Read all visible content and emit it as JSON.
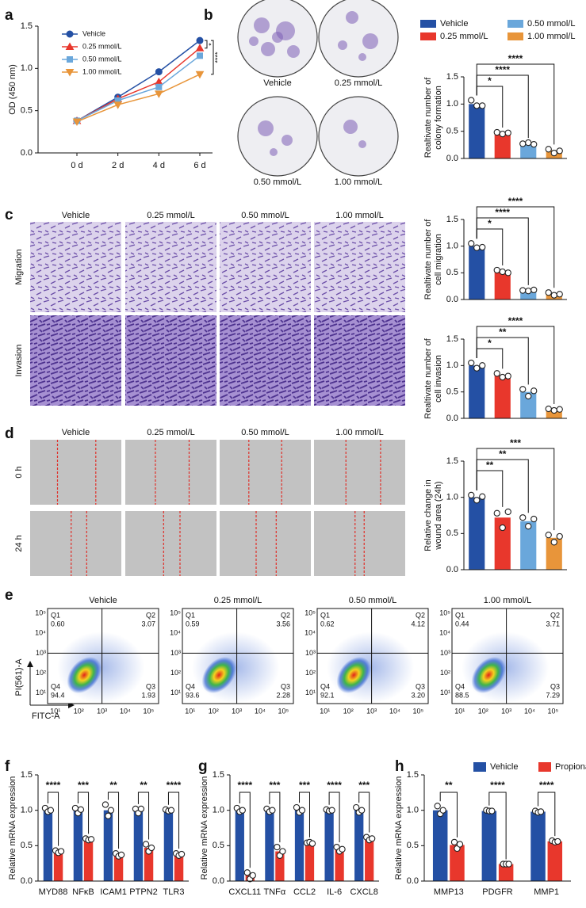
{
  "panel_letters": [
    "a",
    "b",
    "c",
    "d",
    "e",
    "f",
    "g",
    "h"
  ],
  "colony_labels": [
    "Vehicle",
    "0.25 mmol/L",
    "0.50 mmol/L",
    "1.00 mmol/L"
  ],
  "transwell": {
    "columns": [
      "Vehicle",
      "0.25 mmol/L",
      "0.50 mmol/L",
      "1.00 mmol/L"
    ],
    "rows": [
      "Migration",
      "Invasion"
    ]
  },
  "wound": {
    "columns": [
      "Vehicle",
      "0.25 mmol/L",
      "0.50 mmol/L",
      "1.00 mmol/L"
    ],
    "rows": [
      "0 h",
      "24 h"
    ]
  },
  "flow": {
    "xlabel": "FITC-A",
    "ylabel": "PI(561)-A",
    "xticks": [
      "10¹",
      "10²",
      "10³",
      "10⁴",
      "10⁵"
    ],
    "yticks": [
      "10⁵",
      "10⁴",
      "10³",
      "10²",
      "10¹"
    ],
    "quadrant_names": [
      "Q1",
      "Q2",
      "Q3",
      "Q4"
    ],
    "plots": [
      {
        "title": "Vehicle",
        "q1": "0.60",
        "q2": "3.07",
        "q3": "1.93",
        "q4": "94.4"
      },
      {
        "title": "0.25 mmol/L",
        "q1": "0.59",
        "q2": "3.56",
        "q3": "2.28",
        "q4": "93.6"
      },
      {
        "title": "0.50 mmol/L",
        "q1": "0.62",
        "q2": "4.12",
        "q3": "3.20",
        "q4": "92.1"
      },
      {
        "title": "1.00 mmol/L",
        "q1": "0.44",
        "q2": "3.71",
        "q3": "7.29",
        "q4": "88.5"
      }
    ]
  },
  "chart_data": [
    {
      "type": "line",
      "ylabel": "OD (450 nm)",
      "categories": [
        "0 d",
        "2 d",
        "4 d",
        "6 d"
      ],
      "ylim": [
        0,
        1.5
      ],
      "yticks": [
        {
          "value": 0,
          "label": "0.0"
        },
        0.5,
        {
          "value": 1,
          "label": "1.0"
        },
        1.5
      ],
      "series": [
        {
          "name": "Vehicle",
          "color": "#2450a4",
          "marker": "circle",
          "values": [
            0.38,
            0.66,
            0.96,
            1.33
          ]
        },
        {
          "name": "0.25 mmol/L",
          "color": "#e8372c",
          "marker": "triangle",
          "values": [
            0.38,
            0.64,
            0.84,
            1.24
          ]
        },
        {
          "name": "0.50 mmol/L",
          "color": "#6aa7db",
          "marker": "square",
          "values": [
            0.38,
            0.62,
            0.78,
            1.15
          ]
        },
        {
          "name": "1.00 mmol/L",
          "color": "#e8953a",
          "marker": "triangle-down",
          "values": [
            0.37,
            0.57,
            0.7,
            0.93
          ]
        }
      ],
      "annotations": [
        "*",
        "****"
      ]
    },
    {
      "type": "bar",
      "ylabel": [
        "Realtivate number of",
        "colony formation"
      ],
      "legend": [
        "Vehicle",
        "0.25 mmol/L",
        "0.50 mmol/L",
        "1.00 mmol/L"
      ],
      "colors": [
        "#2450a4",
        "#e8372c",
        "#6aa7db",
        "#e8953a"
      ],
      "values": [
        1.0,
        0.47,
        0.28,
        0.15
      ],
      "points": [
        [
          1.07,
          0.97,
          0.97
        ],
        [
          0.48,
          0.45,
          0.47
        ],
        [
          0.27,
          0.29,
          0.26
        ],
        [
          0.17,
          0.1,
          0.14
        ]
      ],
      "significance": [
        "*",
        "****",
        "****"
      ],
      "ylim": [
        0,
        1.5
      ],
      "yticks": [
        {
          "value": 0,
          "label": "0.0"
        },
        0.5,
        {
          "value": 1,
          "label": "1.0"
        },
        1.5
      ]
    },
    {
      "type": "bar",
      "ylabel": [
        "Realtivate number of",
        "cell migration"
      ],
      "colors": [
        "#2450a4",
        "#e8372c",
        "#6aa7db",
        "#e8953a"
      ],
      "values": [
        1.0,
        0.53,
        0.17,
        0.1
      ],
      "points": [
        [
          1.05,
          0.97,
          0.98
        ],
        [
          0.55,
          0.52,
          0.5
        ],
        [
          0.17,
          0.16,
          0.18
        ],
        [
          0.13,
          0.08,
          0.1
        ]
      ],
      "significance": [
        "*",
        "****",
        "****"
      ],
      "ylim": [
        0,
        1.5
      ],
      "yticks": [
        {
          "value": 0,
          "label": "0.0"
        },
        0.5,
        {
          "value": 1,
          "label": "1.0"
        },
        1.5
      ]
    },
    {
      "type": "bar",
      "ylabel": [
        "Realtivate number of",
        "cell invasion"
      ],
      "colors": [
        "#2450a4",
        "#e8372c",
        "#6aa7db",
        "#e8953a"
      ],
      "values": [
        1.0,
        0.81,
        0.5,
        0.17
      ],
      "points": [
        [
          1.05,
          0.95,
          1.0
        ],
        [
          0.85,
          0.78,
          0.8
        ],
        [
          0.55,
          0.42,
          0.52
        ],
        [
          0.18,
          0.15,
          0.17
        ]
      ],
      "significance": [
        "*",
        "**",
        "****"
      ],
      "ylim": [
        0,
        1.5
      ],
      "yticks": [
        {
          "value": 0,
          "label": "0.0"
        },
        0.5,
        {
          "value": 1,
          "label": "1.0"
        },
        1.5
      ]
    },
    {
      "type": "bar",
      "ylabel": [
        "Relative change in",
        "wound area (24h)"
      ],
      "colors": [
        "#2450a4",
        "#e8372c",
        "#6aa7db",
        "#e8953a"
      ],
      "values": [
        1.0,
        0.72,
        0.67,
        0.44
      ],
      "points": [
        [
          1.03,
          0.96,
          1.01
        ],
        [
          0.78,
          0.58,
          0.8
        ],
        [
          0.72,
          0.6,
          0.7
        ],
        [
          0.48,
          0.38,
          0.46
        ]
      ],
      "significance": [
        "**",
        "**",
        "***"
      ],
      "ylim": [
        0,
        1.5
      ],
      "yticks": [
        {
          "value": 0,
          "label": "0.0"
        },
        0.5,
        {
          "value": 1,
          "label": "1.0"
        },
        1.5
      ]
    },
    {
      "type": "bar",
      "ylabel": "Relative mRNA expression",
      "categories": [
        "MYD88",
        "NFκB",
        "ICAM1",
        "PTPN2",
        "TLR3"
      ],
      "series": [
        {
          "color": "#2450a4",
          "values": [
            1.0,
            1.0,
            1.0,
            1.0,
            1.0
          ],
          "points": [
            [
              1.03,
              0.98,
              1.0
            ],
            [
              1.03,
              0.96,
              1.01
            ],
            [
              1.08,
              0.92,
              1.0
            ],
            [
              1.02,
              0.96,
              1.02
            ],
            [
              1.01,
              0.99,
              1.0
            ]
          ]
        },
        {
          "color": "#e8372c",
          "values": [
            0.42,
            0.59,
            0.37,
            0.47,
            0.38
          ],
          "points": [
            [
              0.43,
              0.4,
              0.42
            ],
            [
              0.6,
              0.58,
              0.59
            ],
            [
              0.39,
              0.35,
              0.37
            ],
            [
              0.52,
              0.42,
              0.47
            ],
            [
              0.39,
              0.36,
              0.38
            ]
          ]
        }
      ],
      "significance": [
        "****",
        "***",
        "**",
        "**",
        "****"
      ],
      "ylim": [
        0,
        1.5
      ],
      "yticks": [
        {
          "value": 0,
          "label": "0.0"
        },
        0.5,
        {
          "value": 1,
          "label": "1.0"
        },
        1.5
      ]
    },
    {
      "type": "bar",
      "ylabel": "Relative mRNA expression",
      "categories": [
        "CXCL11",
        "TNFα",
        "CCL2",
        "IL-6",
        "CXCL8"
      ],
      "series": [
        {
          "color": "#2450a4",
          "values": [
            1.0,
            1.0,
            1.0,
            1.0,
            1.0
          ],
          "points": [
            [
              1.03,
              0.98,
              1.0
            ],
            [
              1.02,
              0.98,
              1.0
            ],
            [
              1.04,
              0.97,
              1.0
            ],
            [
              1.01,
              0.99,
              1.0
            ],
            [
              1.04,
              0.97,
              1.0
            ]
          ]
        },
        {
          "color": "#e8372c",
          "values": [
            0.08,
            0.42,
            0.54,
            0.45,
            0.6
          ],
          "points": [
            [
              0.12,
              0.03,
              0.08
            ],
            [
              0.48,
              0.36,
              0.42
            ],
            [
              0.54,
              0.55,
              0.53
            ],
            [
              0.48,
              0.42,
              0.45
            ],
            [
              0.62,
              0.58,
              0.6
            ]
          ]
        }
      ],
      "significance": [
        "****",
        "***",
        "***",
        "****",
        "***"
      ],
      "ylim": [
        0,
        1.5
      ],
      "yticks": [
        {
          "value": 0,
          "label": "0.0"
        },
        0.5,
        {
          "value": 1,
          "label": "1.0"
        },
        1.5
      ]
    },
    {
      "type": "bar",
      "ylabel": "Relative mRNA expression",
      "categories": [
        "MMP13",
        "PDGFR",
        "MMP1"
      ],
      "series": [
        {
          "name": "Vehicle",
          "color": "#2450a4",
          "values": [
            1.0,
            0.99,
            0.98
          ],
          "points": [
            [
              1.06,
              0.95,
              1.0
            ],
            [
              1.0,
              0.99,
              0.99
            ],
            [
              0.99,
              0.97,
              0.98
            ]
          ]
        },
        {
          "name": "Propionate",
          "color": "#e8372c",
          "values": [
            0.51,
            0.24,
            0.56
          ],
          "points": [
            [
              0.55,
              0.46,
              0.52
            ],
            [
              0.24,
              0.24,
              0.24
            ],
            [
              0.57,
              0.55,
              0.56
            ]
          ]
        }
      ],
      "significance": [
        "**",
        "****",
        "****"
      ],
      "ylim": [
        0,
        1.5
      ],
      "yticks": [
        {
          "value": 0,
          "label": "0.0"
        },
        0.5,
        {
          "value": 1,
          "label": "1.0"
        },
        1.5
      ]
    }
  ]
}
